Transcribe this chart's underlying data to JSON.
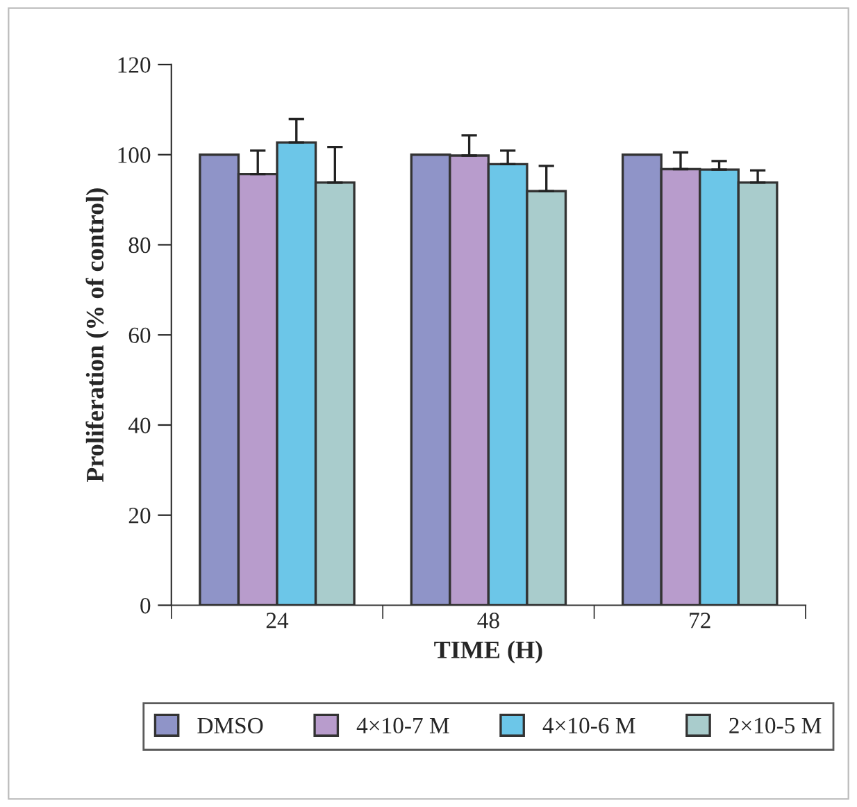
{
  "chart_data": {
    "type": "bar",
    "xlabel": "TIME (H)",
    "ylabel": "Proliferation (% of control)",
    "categories": [
      "24",
      "48",
      "72"
    ],
    "series": [
      {
        "name": "DMSO",
        "color": "#8f94c8",
        "values": [
          100,
          100,
          100
        ],
        "errors": [
          null,
          null,
          null
        ]
      },
      {
        "name": "4×10-7 M",
        "color": "#b89ccc",
        "values": [
          95.7,
          99.8,
          96.8
        ],
        "errors": [
          [
            95.7,
            100.9
          ],
          [
            99.8,
            104.3
          ],
          [
            96.8,
            100.5
          ]
        ]
      },
      {
        "name": "4×10-6 M",
        "color": "#6cc6e8",
        "values": [
          102.7,
          97.9,
          96.7
        ],
        "errors": [
          [
            102.7,
            107.9
          ],
          [
            97.9,
            100.9
          ],
          [
            96.7,
            98.6
          ]
        ]
      },
      {
        "name": "2×10-5 M",
        "color": "#a9cccc",
        "values": [
          93.8,
          91.9,
          93.8
        ],
        "errors": [
          [
            93.8,
            101.7
          ],
          [
            91.9,
            97.5
          ],
          [
            93.8,
            96.5
          ]
        ]
      }
    ],
    "ylim": [
      0,
      120
    ],
    "yticks": [
      0,
      20,
      40,
      60,
      80,
      100,
      120
    ],
    "grid": false,
    "legend": "bottom"
  }
}
